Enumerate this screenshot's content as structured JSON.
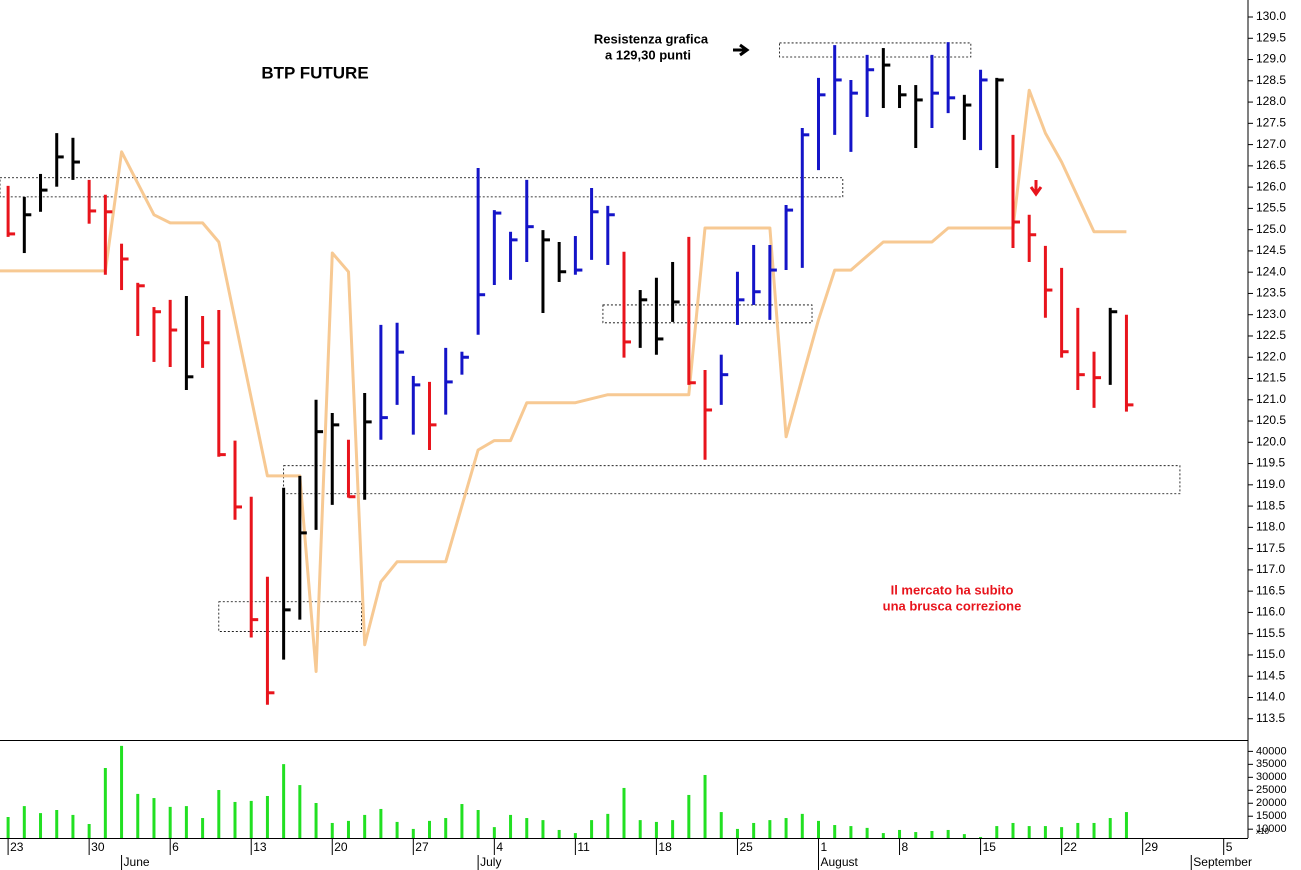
{
  "chart_data": {
    "type": "ohlc",
    "title": "BTP FUTURE",
    "annotations": {
      "resistance": [
        "Resistenza grafica",
        "a 129,30 punti"
      ],
      "correction": [
        "Il mercato ha subito",
        "una brusca correzione"
      ]
    },
    "xlim": [
      -0.5,
      76.5
    ],
    "ylim": [
      113.0,
      130.4
    ],
    "xticks": [
      {
        "value": 0,
        "label": "23"
      },
      {
        "value": 5,
        "label": "30"
      },
      {
        "value": 10,
        "label": "6"
      },
      {
        "value": 15,
        "label": "13"
      },
      {
        "value": 20,
        "label": "20"
      },
      {
        "value": 25,
        "label": "27"
      },
      {
        "value": 30,
        "label": "4"
      },
      {
        "value": 35,
        "label": "11"
      },
      {
        "value": 40,
        "label": "18"
      },
      {
        "value": 45,
        "label": "25"
      },
      {
        "value": 50,
        "label": "1"
      },
      {
        "value": 55,
        "label": "8"
      },
      {
        "value": 60,
        "label": "15"
      },
      {
        "value": 65,
        "label": "22"
      },
      {
        "value": 70,
        "label": "29"
      },
      {
        "value": 75,
        "label": "5"
      }
    ],
    "month_ticks": [
      {
        "value": 7,
        "label": "June"
      },
      {
        "value": 29,
        "label": "July"
      },
      {
        "value": 50,
        "label": "August"
      },
      {
        "value": 73,
        "label": "September"
      }
    ],
    "yticks": [
      113.5,
      {
        "value": 114,
        "label": "114.0"
      },
      114.5,
      {
        "value": 115,
        "label": "115.0"
      },
      115.5,
      {
        "value": 116,
        "label": "116.0"
      },
      116.5,
      {
        "value": 117,
        "label": "117.0"
      },
      117.5,
      {
        "value": 118,
        "label": "118.0"
      },
      118.5,
      {
        "value": 119,
        "label": "119.0"
      },
      119.5,
      {
        "value": 120,
        "label": "120.0"
      },
      120.5,
      {
        "value": 121,
        "label": "121.0"
      },
      121.5,
      {
        "value": 122,
        "label": "122.0"
      },
      122.5,
      {
        "value": 123,
        "label": "123.0"
      },
      123.5,
      {
        "value": 124,
        "label": "124.0"
      },
      124.5,
      {
        "value": 125,
        "label": "125.0"
      },
      125.5,
      {
        "value": 126,
        "label": "126.0"
      },
      126.5,
      {
        "value": 127,
        "label": "127.0"
      },
      127.5,
      {
        "value": 128,
        "label": "128.0"
      },
      128.5,
      {
        "value": 129,
        "label": "129.0"
      },
      129.5,
      {
        "value": 130,
        "label": "130.0"
      }
    ],
    "x": [
      0,
      1,
      2,
      3,
      4,
      5,
      6,
      7,
      8,
      9,
      10,
      11,
      12,
      13,
      14,
      15,
      16,
      17,
      18,
      19,
      20,
      21,
      22,
      23,
      24,
      25,
      26,
      27,
      28,
      29,
      30,
      31,
      32,
      33,
      34,
      35,
      36,
      37,
      38,
      39,
      40,
      41,
      42,
      43,
      44,
      45,
      46,
      47,
      48,
      49,
      50,
      51,
      52,
      53,
      54,
      55,
      56,
      57,
      58,
      59,
      60,
      61,
      62,
      63,
      64,
      65,
      66,
      67,
      68,
      69
    ],
    "high": [
      126.03,
      125.77,
      126.31,
      127.27,
      127.16,
      126.17,
      125.82,
      124.67,
      123.75,
      123.18,
      123.35,
      123.44,
      122.97,
      123.11,
      120.04,
      118.72,
      116.84,
      118.93,
      119.21,
      121.0,
      120.69,
      120.06,
      121.16,
      122.76,
      122.81,
      121.56,
      121.42,
      122.22,
      122.13,
      126.45,
      125.46,
      124.95,
      126.17,
      124.99,
      124.71,
      124.85,
      125.98,
      125.56,
      124.48,
      123.58,
      123.87,
      124.24,
      124.83,
      121.7,
      122.06,
      124.01,
      124.64,
      124.64,
      125.58,
      127.39,
      128.57,
      129.34,
      128.52,
      129.11,
      129.27,
      128.4,
      128.4,
      129.11,
      129.41,
      128.17,
      128.76,
      128.57,
      127.23,
      125.35,
      124.62,
      124.1,
      123.16,
      122.13,
      123.16,
      123.0
    ],
    "low": [
      124.83,
      124.45,
      125.42,
      126.01,
      126.17,
      125.14,
      123.94,
      123.58,
      122.5,
      121.89,
      121.77,
      121.23,
      121.75,
      119.66,
      118.18,
      115.41,
      113.83,
      114.89,
      115.83,
      117.94,
      118.53,
      118.7,
      118.65,
      120.06,
      120.88,
      120.18,
      119.82,
      120.65,
      121.59,
      122.53,
      123.7,
      123.82,
      124.24,
      123.04,
      123.77,
      123.94,
      124.29,
      124.17,
      121.99,
      122.22,
      122.06,
      122.83,
      121.35,
      119.59,
      120.88,
      122.76,
      123.23,
      122.88,
      124.05,
      124.1,
      126.4,
      127.23,
      126.83,
      127.65,
      127.86,
      127.86,
      126.92,
      127.39,
      127.74,
      127.11,
      126.87,
      126.45,
      124.57,
      124.24,
      122.93,
      121.99,
      121.23,
      120.81,
      121.35,
      120.72
    ],
    "close": [
      124.9,
      125.35,
      125.93,
      126.71,
      126.59,
      125.44,
      125.42,
      124.31,
      123.68,
      123.07,
      122.64,
      121.54,
      122.34,
      119.71,
      118.48,
      115.83,
      114.11,
      116.06,
      117.87,
      120.25,
      120.41,
      118.72,
      120.48,
      120.58,
      122.12,
      121.35,
      120.41,
      121.42,
      122.0,
      123.47,
      125.39,
      124.76,
      125.07,
      124.76,
      124.01,
      124.05,
      125.42,
      125.35,
      122.36,
      123.35,
      122.43,
      123.3,
      121.4,
      120.76,
      121.59,
      123.35,
      123.54,
      124.05,
      125.46,
      127.23,
      128.17,
      128.52,
      128.21,
      128.76,
      128.87,
      128.17,
      128.05,
      128.21,
      128.1,
      127.93,
      128.52,
      128.52,
      125.18,
      124.88,
      123.58,
      122.13,
      121.59,
      121.52,
      123.07,
      120.88
    ],
    "bar_colors": [
      "#e8141c",
      "#000000",
      "#000000",
      "#000000",
      "#000000",
      "#e8141c",
      "#e8141c",
      "#e8141c",
      "#e8141c",
      "#e8141c",
      "#e8141c",
      "#000000",
      "#e8141c",
      "#e8141c",
      "#e8141c",
      "#e8141c",
      "#e8141c",
      "#000000",
      "#000000",
      "#000000",
      "#000000",
      "#e8141c",
      "#000000",
      "#1414c8",
      "#1414c8",
      "#1414c8",
      "#e8141c",
      "#1414c8",
      "#1414c8",
      "#1414c8",
      "#1414c8",
      "#1414c8",
      "#1414c8",
      "#000000",
      "#000000",
      "#1414c8",
      "#1414c8",
      "#1414c8",
      "#e8141c",
      "#000000",
      "#000000",
      "#000000",
      "#e8141c",
      "#e8141c",
      "#1414c8",
      "#1414c8",
      "#1414c8",
      "#1414c8",
      "#1414c8",
      "#1414c8",
      "#1414c8",
      "#1414c8",
      "#1414c8",
      "#1414c8",
      "#000000",
      "#000000",
      "#000000",
      "#1414c8",
      "#1414c8",
      "#000000",
      "#1414c8",
      "#000000",
      "#e8141c",
      "#e8141c",
      "#e8141c",
      "#e8141c",
      "#e8141c",
      "#e8141c",
      "#000000",
      "#e8141c"
    ],
    "line": {
      "color": "#f7c993",
      "x": [
        -0.5,
        6,
        7,
        9,
        10,
        12,
        13,
        16,
        18,
        19,
        20,
        21,
        22,
        23,
        24,
        27,
        29,
        30,
        31,
        32,
        35,
        37,
        42,
        43,
        47,
        48,
        49,
        50,
        51,
        52,
        54,
        57,
        58,
        62,
        63,
        64,
        65,
        67,
        69
      ],
      "values": [
        124.03,
        124.03,
        126.83,
        125.35,
        125.16,
        125.16,
        124.71,
        119.21,
        119.21,
        114.61,
        124.45,
        124.01,
        115.24,
        116.72,
        117.19,
        117.19,
        119.82,
        120.04,
        120.04,
        120.93,
        120.93,
        121.12,
        121.12,
        125.04,
        125.04,
        120.13,
        121.52,
        122.88,
        124.05,
        124.05,
        124.71,
        124.71,
        125.04,
        125.04,
        128.28,
        127.27,
        126.59,
        124.95,
        124.95
      ]
    },
    "zones": [
      {
        "x": [
          -0.5,
          51.5
        ],
        "y": [
          125.77,
          126.22
        ]
      },
      {
        "x": [
          47.6,
          59.4
        ],
        "y": [
          129.06,
          129.39
        ]
      },
      {
        "x": [
          36.7,
          49.6
        ],
        "y": [
          122.81,
          123.23
        ]
      },
      {
        "x": [
          17.0,
          72.3
        ],
        "y": [
          118.79,
          119.45
        ]
      },
      {
        "x": [
          13.0,
          21.8
        ],
        "y": [
          115.55,
          116.25
        ]
      }
    ],
    "volume": {
      "color": "#22e022",
      "ylim": [
        6600,
        44000
      ],
      "yticks": [
        10000,
        15000,
        20000,
        25000,
        30000,
        35000,
        40000
      ],
      "unit_label": "x10",
      "values": [
        14700,
        18900,
        16200,
        17400,
        15500,
        12000,
        33600,
        42100,
        23600,
        22000,
        18600,
        18900,
        14300,
        25100,
        20500,
        20900,
        22800,
        35100,
        27000,
        20100,
        12400,
        13200,
        15500,
        17800,
        12800,
        10100,
        13200,
        14300,
        19700,
        17400,
        10800,
        15500,
        14300,
        13500,
        9700,
        8500,
        13500,
        15900,
        25900,
        13500,
        12800,
        13500,
        23200,
        30900,
        16600,
        10100,
        12400,
        13500,
        14300,
        15900,
        13200,
        11600,
        11200,
        10500,
        8500,
        9700,
        8900,
        9300,
        9700,
        8100,
        7000,
        11200,
        12400,
        11200,
        11200,
        10800,
        12400,
        12400,
        14300,
        16600
      ]
    }
  }
}
